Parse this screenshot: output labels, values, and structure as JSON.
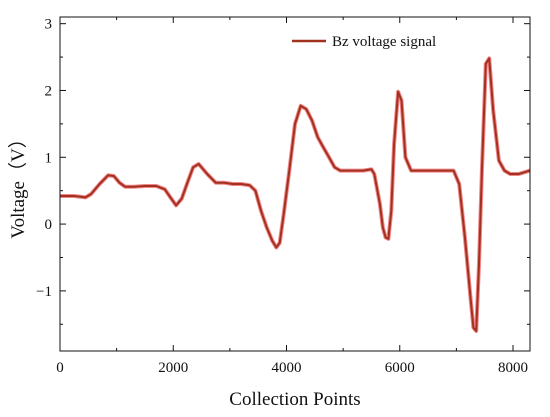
{
  "chart_data": {
    "type": "line",
    "xlabel": "Collection Points",
    "ylabel": "Voltage（V）",
    "xlim": [
      0,
      8300
    ],
    "ylim": [
      -1.9,
      3.1
    ],
    "xticks": [
      0,
      2000,
      4000,
      6000,
      8000
    ],
    "xtick_labels": [
      "0",
      "2000",
      "4000",
      "6000",
      "8000"
    ],
    "yticks": [
      -1,
      0,
      1,
      2,
      3
    ],
    "ytick_labels": [
      "−1",
      "0",
      "1",
      "2",
      "3"
    ],
    "grid": false,
    "legend_position": "top-right",
    "series": [
      {
        "name": "Bz voltage signal",
        "color": "#a0321e",
        "highlight_color": "#e8202a",
        "x": [
          0,
          250,
          450,
          550,
          700,
          850,
          950,
          1050,
          1150,
          1300,
          1500,
          1700,
          1850,
          1950,
          2050,
          2150,
          2250,
          2350,
          2450,
          2600,
          2750,
          2900,
          3050,
          3200,
          3350,
          3450,
          3550,
          3650,
          3750,
          3820,
          3880,
          3950,
          4050,
          4150,
          4250,
          4350,
          4450,
          4550,
          4650,
          4750,
          4850,
          4950,
          5150,
          5350,
          5500,
          5550,
          5650,
          5700,
          5750,
          5800,
          5850,
          5900,
          5970,
          6030,
          6100,
          6200,
          6400,
          6700,
          6950,
          7050,
          7150,
          7250,
          7300,
          7350,
          7400,
          7450,
          7520,
          7580,
          7650,
          7750,
          7850,
          7950,
          8100,
          8300
        ],
        "y": [
          0.42,
          0.42,
          0.4,
          0.45,
          0.6,
          0.73,
          0.72,
          0.62,
          0.56,
          0.56,
          0.57,
          0.57,
          0.52,
          0.4,
          0.28,
          0.38,
          0.62,
          0.85,
          0.9,
          0.75,
          0.62,
          0.62,
          0.6,
          0.6,
          0.58,
          0.5,
          0.2,
          -0.05,
          -0.25,
          -0.35,
          -0.28,
          0.15,
          0.8,
          1.5,
          1.77,
          1.72,
          1.55,
          1.3,
          1.15,
          1.0,
          0.85,
          0.8,
          0.8,
          0.8,
          0.82,
          0.75,
          0.3,
          -0.05,
          -0.2,
          -0.22,
          0.2,
          1.2,
          1.98,
          1.85,
          1.0,
          0.8,
          0.8,
          0.8,
          0.8,
          0.6,
          -0.2,
          -1.1,
          -1.55,
          -1.6,
          -0.6,
          0.8,
          2.4,
          2.48,
          1.7,
          0.95,
          0.8,
          0.75,
          0.75,
          0.8
        ]
      }
    ]
  }
}
